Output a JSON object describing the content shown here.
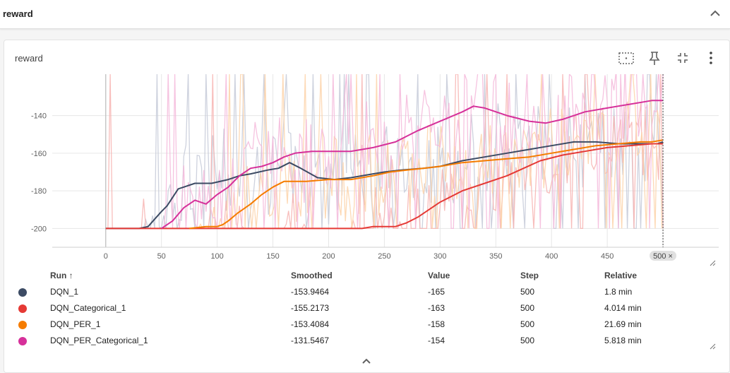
{
  "section": {
    "title": "reward"
  },
  "card": {
    "title": "reward",
    "tools": [
      "fit-domain-icon",
      "pin-icon",
      "collapse-icon",
      "more-vert-icon"
    ]
  },
  "chart_data": {
    "type": "line",
    "xlim": [
      -48,
      550
    ],
    "ylim": [
      -210,
      -118
    ],
    "x_ticks": [
      "0",
      "50",
      "100",
      "150",
      "200",
      "250",
      "300",
      "350",
      "400",
      "450",
      "500"
    ],
    "y_ticks": [
      -140,
      -160,
      -180,
      -200
    ],
    "x_tick_values": [
      0,
      50,
      100,
      150,
      200,
      250,
      300,
      350,
      400,
      450,
      500
    ],
    "hover_step_label": "500 ×",
    "grid": true,
    "series": [
      {
        "name": "DQN_1",
        "color": "#3c4b64",
        "raw_color": "#c5cad8",
        "x": [
          0,
          30,
          38,
          44,
          50,
          55,
          65,
          70,
          80,
          95,
          110,
          120,
          130,
          145,
          155,
          165,
          175,
          190,
          205,
          220,
          240,
          250,
          265,
          285,
          300,
          320,
          340,
          360,
          380,
          400,
          420,
          440,
          460,
          480,
          495,
          500
        ],
        "y": [
          -200,
          -200,
          -199,
          -195,
          -191,
          -188,
          -179,
          -178,
          -176,
          -176,
          -174,
          -172,
          -171,
          -169,
          -168,
          -165,
          -168,
          -173,
          -174,
          -173,
          -171,
          -170,
          -169,
          -168,
          -167,
          -164,
          -162,
          -160,
          -158,
          -156,
          -154,
          -154,
          -155,
          -155,
          -155,
          -154
        ]
      },
      {
        "name": "DQN_Categorical_1",
        "color": "#e53935",
        "raw_color": "#f7b3b0",
        "x": [
          0,
          100,
          200,
          230,
          240,
          260,
          270,
          280,
          300,
          320,
          340,
          360,
          375,
          390,
          410,
          430,
          450,
          470,
          490,
          500
        ],
        "y": [
          -200,
          -200,
          -200,
          -200,
          -199,
          -199,
          -197,
          -194,
          -186,
          -180,
          -176,
          -172,
          -168,
          -164,
          -161,
          -159,
          -157,
          -156,
          -155,
          -155
        ]
      },
      {
        "name": "DQN_PER_1",
        "color": "#f57c00",
        "raw_color": "#fdd2a8",
        "x": [
          75,
          90,
          100,
          105,
          110,
          118,
          130,
          140,
          150,
          160,
          180,
          200,
          220,
          240,
          255,
          270,
          285,
          300,
          320,
          340,
          360,
          380,
          400,
          420,
          440,
          460,
          480,
          490,
          500
        ],
        "y": [
          -200,
          -199,
          -199,
          -198,
          -196,
          -192,
          -187,
          -182,
          -178,
          -175,
          -175,
          -174,
          -174,
          -172,
          -170,
          -169,
          -168,
          -167,
          -165,
          -164,
          -163,
          -162,
          -160,
          -158,
          -156,
          -155,
          -154,
          -154,
          -153
        ]
      },
      {
        "name": "DQN_PER_Categorical_1",
        "color": "#d6309a",
        "raw_color": "#f5b9da",
        "x": [
          50,
          60,
          70,
          80,
          90,
          100,
          110,
          120,
          130,
          140,
          150,
          160,
          170,
          185,
          200,
          220,
          240,
          260,
          280,
          300,
          320,
          330,
          340,
          360,
          380,
          395,
          410,
          430,
          450,
          470,
          490,
          500
        ],
        "y": [
          -200,
          -196,
          -189,
          -185,
          -187,
          -182,
          -178,
          -172,
          -168,
          -167,
          -165,
          -162,
          -160,
          -159,
          -159,
          -159,
          -157,
          -154,
          -148,
          -143,
          -138,
          -135,
          -136,
          -140,
          -143,
          -144,
          -142,
          -138,
          -136,
          -134,
          -132,
          -132
        ]
      }
    ]
  },
  "table": {
    "headers": {
      "run": "Run ↑",
      "smoothed": "Smoothed",
      "value": "Value",
      "step": "Step",
      "relative": "Relative"
    },
    "rows": [
      {
        "color": "#3c4b64",
        "run": "DQN_1",
        "smoothed": "-153.9464",
        "value": "-165",
        "step": "500",
        "relative": "1.8 min"
      },
      {
        "color": "#e53935",
        "run": "DQN_Categorical_1",
        "smoothed": "-155.2173",
        "value": "-163",
        "step": "500",
        "relative": "4.014 min"
      },
      {
        "color": "#f57c00",
        "run": "DQN_PER_1",
        "smoothed": "-153.4084",
        "value": "-158",
        "step": "500",
        "relative": "21.69 min"
      },
      {
        "color": "#d6309a",
        "run": "DQN_PER_Categorical_1",
        "smoothed": "-131.5467",
        "value": "-154",
        "step": "500",
        "relative": "5.818 min"
      }
    ]
  }
}
